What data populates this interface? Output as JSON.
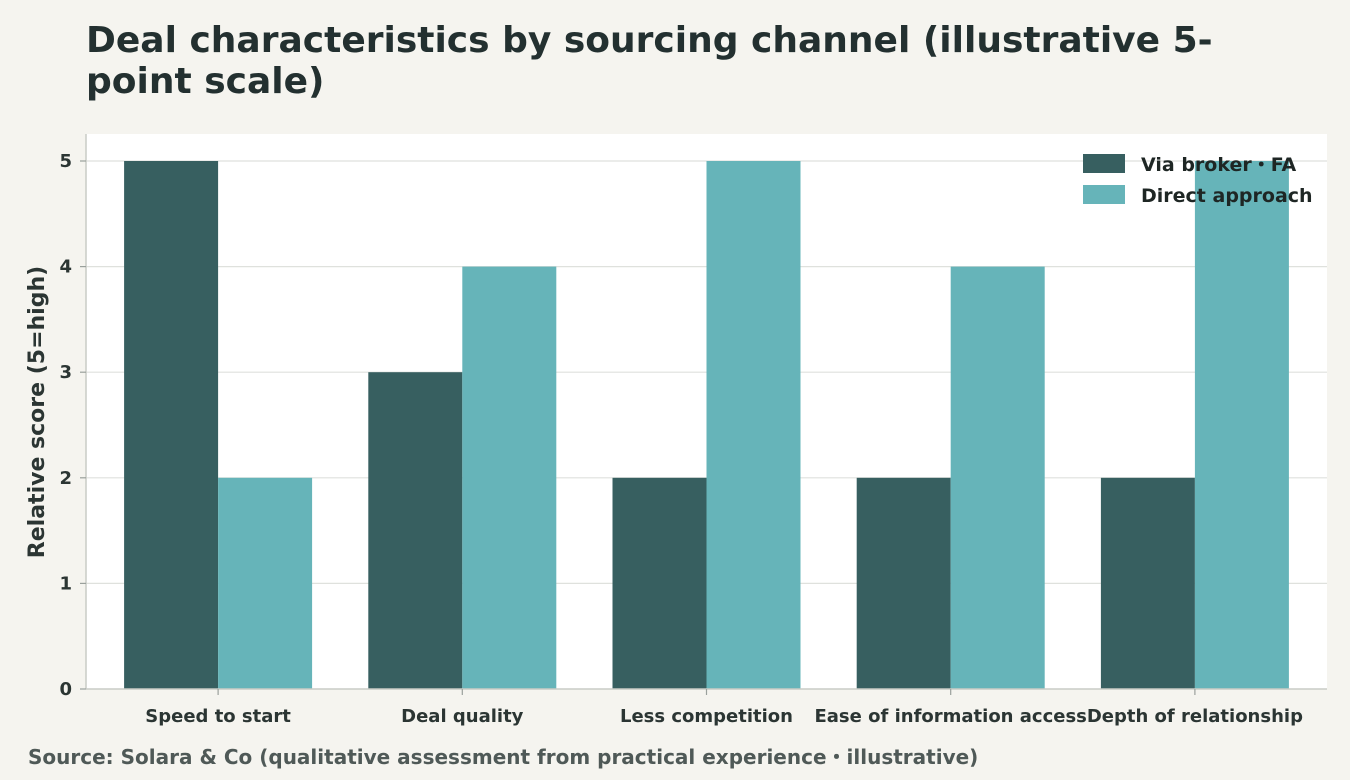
{
  "chart_data": {
    "type": "bar",
    "title": "Deal characteristics by sourcing channel (illustrative 5-point scale)",
    "xlabel": "",
    "ylabel": "Relative score (5=high)",
    "ylim": [
      0,
      5
    ],
    "yticks": [
      "0",
      "1",
      "2",
      "3",
      "4",
      "5"
    ],
    "grid": true,
    "legend_position": "top-right",
    "categories": [
      "Speed to start",
      "Deal quality",
      "Less competition",
      "Ease of information access",
      "Depth of relationship"
    ],
    "series": [
      {
        "name": "Via broker・FA",
        "color": "#375f60",
        "values": [
          5,
          3,
          2,
          2,
          2
        ]
      },
      {
        "name": "Direct approach",
        "color": "#66b4b9",
        "values": [
          2,
          4,
          5,
          4,
          5
        ]
      }
    ]
  },
  "source": "Source: Solara & Co (qualitative assessment from practical experience・illustrative)"
}
